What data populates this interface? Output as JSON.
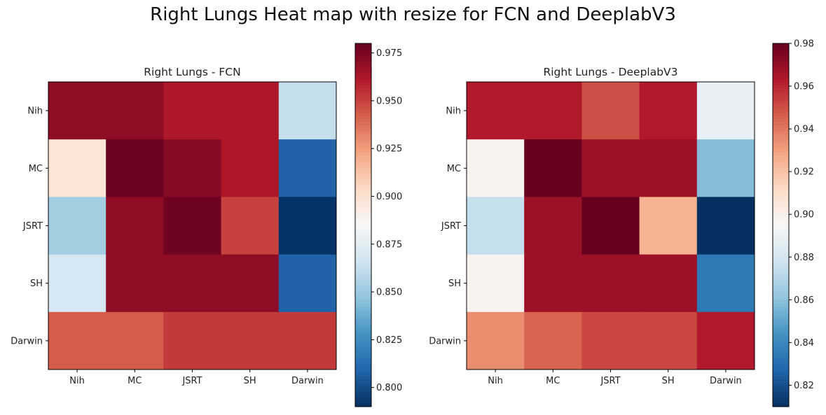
{
  "figure": {
    "title": "Right Lungs Heat map with resize for FCN and DeeplabV3"
  },
  "chart_data": [
    {
      "type": "heatmap",
      "title": "Right Lungs - FCN",
      "x_categories": [
        "Nih",
        "MC",
        "JSRT",
        "SH",
        "Darwin"
      ],
      "y_categories": [
        "Nih",
        "MC",
        "JSRT",
        "SH",
        "Darwin"
      ],
      "values": [
        [
          0.97,
          0.97,
          0.962,
          0.962,
          0.862
        ],
        [
          0.898,
          0.979,
          0.972,
          0.962,
          0.808
        ],
        [
          0.852,
          0.97,
          0.978,
          0.95,
          0.791
        ],
        [
          0.868,
          0.97,
          0.97,
          0.97,
          0.808
        ],
        [
          0.943,
          0.943,
          0.952,
          0.952,
          0.952
        ]
      ],
      "colorbar": {
        "range": [
          0.79,
          0.98
        ],
        "ticks": [
          0.8,
          0.825,
          0.85,
          0.875,
          0.9,
          0.925,
          0.95,
          0.975
        ],
        "tick_labels": [
          "0.800",
          "0.825",
          "0.850",
          "0.875",
          "0.900",
          "0.925",
          "0.950",
          "0.975"
        ]
      },
      "colormap": [
        "#053061",
        "#2166ac",
        "#4393c3",
        "#92c5de",
        "#d1e5f0",
        "#f7f7f7",
        "#fddbc7",
        "#f4a582",
        "#d6604d",
        "#b2182b",
        "#67001f"
      ]
    },
    {
      "type": "heatmap",
      "title": "Right Lungs - DeeplabV3",
      "x_categories": [
        "Nih",
        "MC",
        "JSRT",
        "SH",
        "Darwin"
      ],
      "y_categories": [
        "Nih",
        "MC",
        "JSRT",
        "SH",
        "Darwin"
      ],
      "values": [
        [
          0.963,
          0.963,
          0.95,
          0.963,
          0.888
        ],
        [
          0.898,
          0.98,
          0.968,
          0.968,
          0.858
        ],
        [
          0.875,
          0.968,
          0.98,
          0.925,
          0.81
        ],
        [
          0.898,
          0.968,
          0.968,
          0.968,
          0.834
        ],
        [
          0.935,
          0.945,
          0.952,
          0.952,
          0.963
        ]
      ],
      "colorbar": {
        "range": [
          0.81,
          0.98
        ],
        "ticks": [
          0.82,
          0.84,
          0.86,
          0.88,
          0.9,
          0.92,
          0.94,
          0.96,
          0.98
        ],
        "tick_labels": [
          "0.82",
          "0.84",
          "0.86",
          "0.88",
          "0.90",
          "0.92",
          "0.94",
          "0.96",
          "0.98"
        ]
      },
      "colormap": [
        "#053061",
        "#2166ac",
        "#4393c3",
        "#92c5de",
        "#d1e5f0",
        "#f7f7f7",
        "#fddbc7",
        "#f4a582",
        "#d6604d",
        "#b2182b",
        "#67001f"
      ]
    }
  ]
}
